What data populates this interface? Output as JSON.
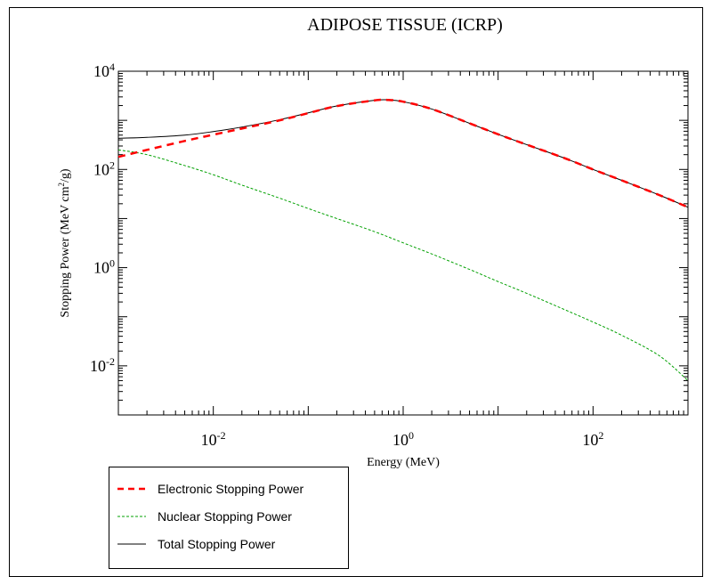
{
  "chart_data": {
    "type": "line",
    "title": "ADIPOSE TISSUE (ICRP)",
    "xlabel": "Energy (MeV)",
    "ylabel_main": "Stopping Power (MeV cm",
    "ylabel_sup": "2",
    "ylabel_tail": "/g)",
    "x_scale": "log",
    "y_scale": "log",
    "xlim": [
      0.001,
      1000
    ],
    "ylim": [
      0.001,
      10000
    ],
    "x_ticks": [
      {
        "value": 0.01,
        "base": "10",
        "exp": "-2"
      },
      {
        "value": 1,
        "base": "10",
        "exp": "0"
      },
      {
        "value": 100,
        "base": "10",
        "exp": "2"
      }
    ],
    "y_ticks": [
      {
        "value": 0.01,
        "base": "10",
        "exp": "-2"
      },
      {
        "value": 1,
        "base": "10",
        "exp": "0"
      },
      {
        "value": 100,
        "base": "10",
        "exp": "2"
      },
      {
        "value": 10000,
        "base": "10",
        "exp": "4"
      }
    ],
    "grid": false,
    "legend_position": "bottom-left, below plot",
    "series": [
      {
        "name": "Electronic Stopping Power",
        "color": "#ff0000",
        "style": "dashed",
        "x": [
          0.001,
          0.002,
          0.005,
          0.01,
          0.02,
          0.05,
          0.1,
          0.2,
          0.5,
          0.7,
          1,
          2,
          5,
          10,
          20,
          50,
          100,
          200,
          500,
          1000
        ],
        "y": [
          180,
          250,
          380,
          510,
          680,
          1000,
          1400,
          1950,
          2550,
          2600,
          2400,
          1700,
          870,
          520,
          320,
          170,
          100,
          60,
          30,
          17
        ]
      },
      {
        "name": "Nuclear Stopping Power",
        "color": "#00a000",
        "style": "dashed",
        "x": [
          0.001,
          0.002,
          0.005,
          0.01,
          0.02,
          0.05,
          0.1,
          0.2,
          0.5,
          1,
          2,
          5,
          10,
          20,
          50,
          100,
          200,
          500,
          1000
        ],
        "y": [
          250,
          200,
          120,
          78,
          48,
          26,
          16,
          10,
          5.4,
          3.2,
          1.9,
          0.92,
          0.52,
          0.3,
          0.14,
          0.078,
          0.042,
          0.016,
          0.005
        ]
      },
      {
        "name": "Total Stopping Power",
        "color": "#000000",
        "style": "solid",
        "x": [
          0.001,
          0.002,
          0.005,
          0.01,
          0.02,
          0.05,
          0.1,
          0.2,
          0.5,
          0.7,
          1,
          2,
          5,
          10,
          20,
          50,
          100,
          200,
          500,
          1000
        ],
        "y": [
          430,
          450,
          500,
          590,
          730,
          1030,
          1420,
          1960,
          2560,
          2610,
          2400,
          1700,
          870,
          520,
          320,
          170,
          100,
          60,
          30,
          17
        ]
      }
    ]
  }
}
